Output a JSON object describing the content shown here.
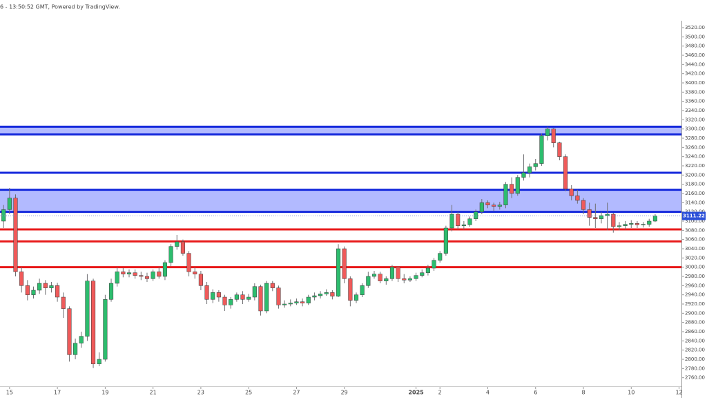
{
  "chart_data": {
    "type": "candlestick",
    "title": "6 - 13:50:52 GMT, Powered by TradingView.",
    "x": [
      14.75,
      15,
      15.25,
      15.5,
      15.75,
      16,
      16.25,
      16.5,
      16.75,
      17,
      17.25,
      17.5,
      17.75,
      18,
      18.25,
      18.5,
      18.75,
      19,
      19.25,
      19.5,
      19.75,
      20,
      20.25,
      20.5,
      20.75,
      21,
      21.25,
      21.5,
      21.75,
      22,
      22.25,
      22.5,
      22.75,
      23,
      23.25,
      23.5,
      23.75,
      24,
      24.25,
      24.5,
      24.75,
      25,
      25.25,
      25.5,
      25.75,
      26,
      26.25,
      26.5,
      26.75,
      27,
      27.25,
      27.5,
      27.75,
      28,
      28.25,
      28.5,
      28.75,
      29,
      29.25,
      29.5,
      29.75,
      30,
      30.25,
      30.5,
      30.75,
      31,
      31.25,
      31.5,
      31.75,
      32,
      32.25,
      32.5,
      32.75,
      33,
      33.25,
      33.5,
      33.75,
      34,
      34.25,
      34.5,
      34.75,
      35,
      35.25,
      35.5,
      35.75,
      36,
      36.25,
      36.5,
      36.75,
      37,
      37.25,
      37.5,
      37.75,
      38,
      38.25,
      38.5,
      38.75,
      39,
      39.25,
      39.5,
      39.75,
      40,
      40.25,
      40.5,
      40.75,
      41,
      41.25,
      41.5,
      41.75,
      42
    ],
    "open": [
      3100,
      3125,
      3150,
      2990,
      2960,
      2940,
      2950,
      2965,
      2955,
      2960,
      2935,
      2910,
      2810,
      2835,
      2850,
      2970,
      2790,
      2800,
      2930,
      2965,
      2990,
      2985,
      2988,
      2982,
      2980,
      2975,
      2990,
      2980,
      3010,
      3045,
      3055,
      3030,
      2990,
      2985,
      2960,
      2930,
      2945,
      2935,
      2918,
      2930,
      2940,
      2930,
      2935,
      2958,
      2905,
      2965,
      2955,
      2918,
      2920,
      2922,
      2925,
      2922,
      2935,
      2938,
      2942,
      2945,
      2937,
      3040,
      2975,
      2928,
      2940,
      2960,
      2980,
      2985,
      2970,
      2975,
      3000,
      2975,
      2972,
      2975,
      2982,
      2988,
      2998,
      3015,
      3030,
      3085,
      3115,
      3090,
      3092,
      3105,
      3120,
      3140,
      3135,
      3132,
      3135,
      3180,
      3160,
      3195,
      3205,
      3218,
      3225,
      3285,
      3300,
      3270,
      3240,
      3170,
      3155,
      3145,
      3125,
      3108,
      3105,
      3112,
      3115,
      3088,
      3090,
      3093,
      3095,
      3092,
      3093,
      3100
    ],
    "high": [
      3135,
      3172,
      3158,
      3000,
      2972,
      2958,
      2975,
      2972,
      2968,
      2966,
      2945,
      2915,
      2845,
      2860,
      2985,
      2975,
      2815,
      2940,
      2975,
      3000,
      2998,
      2995,
      2995,
      2990,
      2988,
      2995,
      3000,
      3015,
      3050,
      3070,
      3060,
      3035,
      3000,
      2992,
      2968,
      2952,
      2950,
      2940,
      2935,
      2945,
      2948,
      2942,
      2965,
      2962,
      2970,
      2970,
      2960,
      2928,
      2930,
      2932,
      2932,
      2940,
      2945,
      2948,
      2952,
      2950,
      3050,
      3045,
      2980,
      2945,
      2965,
      2990,
      2992,
      2990,
      2980,
      3005,
      3002,
      2985,
      2980,
      2988,
      2995,
      3005,
      3020,
      3035,
      3090,
      3135,
      3120,
      3100,
      3110,
      3125,
      3148,
      3145,
      3140,
      3142,
      3185,
      3195,
      3200,
      3245,
      3225,
      3235,
      3290,
      3305,
      3302,
      3272,
      3245,
      3178,
      3168,
      3150,
      3140,
      3138,
      3120,
      3140,
      3118,
      3098,
      3100,
      3102,
      3100,
      3098,
      3105,
      3115
    ],
    "low": [
      3085,
      3115,
      2980,
      2945,
      2928,
      2932,
      2942,
      2940,
      2945,
      2925,
      2890,
      2795,
      2800,
      2825,
      2840,
      2781,
      2785,
      2795,
      2925,
      2958,
      2978,
      2978,
      2975,
      2972,
      2968,
      2970,
      2975,
      2972,
      3002,
      3038,
      3025,
      2980,
      2975,
      2950,
      2920,
      2922,
      2925,
      2905,
      2910,
      2925,
      2920,
      2925,
      2928,
      2895,
      2900,
      2948,
      2910,
      2912,
      2915,
      2918,
      2915,
      2918,
      2928,
      2932,
      2938,
      2930,
      2935,
      2965,
      2915,
      2922,
      2935,
      2955,
      2975,
      2965,
      2962,
      2970,
      2968,
      2965,
      2968,
      2970,
      2978,
      2982,
      2992,
      3010,
      3025,
      3078,
      3082,
      3082,
      3088,
      3100,
      3115,
      3128,
      3122,
      3125,
      3128,
      3150,
      3155,
      3188,
      3195,
      3210,
      3220,
      3275,
      3260,
      3232,
      3165,
      3145,
      3138,
      3115,
      3090,
      3085,
      3095,
      3080,
      3075,
      3080,
      3082,
      3085,
      3085,
      3086,
      3088,
      3098
    ],
    "close": [
      3125,
      3150,
      2990,
      2960,
      2940,
      2950,
      2965,
      2955,
      2960,
      2935,
      2910,
      2810,
      2835,
      2850,
      2970,
      2790,
      2800,
      2930,
      2965,
      2990,
      2985,
      2988,
      2982,
      2980,
      2975,
      2990,
      2980,
      3010,
      3045,
      3055,
      3030,
      2990,
      2985,
      2960,
      2930,
      2945,
      2935,
      2918,
      2930,
      2940,
      2930,
      2935,
      2958,
      2905,
      2965,
      2955,
      2918,
      2920,
      2922,
      2925,
      2922,
      2935,
      2938,
      2942,
      2945,
      2937,
      3040,
      2975,
      2928,
      2940,
      2960,
      2980,
      2985,
      2970,
      2975,
      3000,
      2975,
      2972,
      2975,
      2982,
      2988,
      2998,
      3015,
      3030,
      3085,
      3115,
      3090,
      3092,
      3105,
      3120,
      3140,
      3135,
      3132,
      3135,
      3180,
      3160,
      3195,
      3205,
      3218,
      3225,
      3285,
      3300,
      3270,
      3240,
      3170,
      3155,
      3145,
      3125,
      3108,
      3105,
      3112,
      3115,
      3088,
      3090,
      3093,
      3095,
      3092,
      3093,
      3100,
      3111.22
    ],
    "up_color": "#2dbd6e",
    "down_color": "#ef5a5a",
    "wick_color": "#6f6f72",
    "zones": [
      {
        "from": 3288,
        "to": 3305,
        "color": "#aab2ff",
        "border": "#1428dc"
      },
      {
        "from": 3120,
        "to": 3168,
        "color": "#aab2ff",
        "border": "#1428dc"
      }
    ],
    "lines": [
      {
        "value": 3205,
        "color": "#1428dc"
      },
      {
        "value": 3082,
        "color": "#e8191a"
      },
      {
        "value": 3056,
        "color": "#e8191a"
      },
      {
        "value": 3000,
        "color": "#e8191a"
      }
    ],
    "price_label_color": "#2b4fd8",
    "xlim": [
      14.6,
      43.1
    ],
    "ylim": [
      2740,
      3535
    ],
    "xticks": [
      15,
      17,
      19,
      21,
      23,
      25,
      27,
      29,
      {
        "value": 32,
        "label": "2025"
      },
      {
        "value": 33,
        "label": "2"
      },
      {
        "value": 35,
        "label": "4"
      },
      {
        "value": 37,
        "label": "6"
      },
      {
        "value": 39,
        "label": "8"
      },
      {
        "value": 41,
        "label": "10"
      },
      {
        "value": 43,
        "label": "12"
      }
    ],
    "yticks": [
      {
        "value": 2760,
        "label": "2760.00"
      },
      {
        "value": 2780,
        "label": "2780.00"
      },
      {
        "value": 2800,
        "label": "2800.00"
      },
      {
        "value": 2820,
        "label": "2820.00"
      },
      {
        "value": 2840,
        "label": "2840.00"
      },
      {
        "value": 2860,
        "label": "2860.00"
      },
      {
        "value": 2880,
        "label": "2880.00"
      },
      {
        "value": 2900,
        "label": "2900.00"
      },
      {
        "value": 2920,
        "label": "2920.00"
      },
      {
        "value": 2940,
        "label": "2940.00"
      },
      {
        "value": 2960,
        "label": "2960.00"
      },
      {
        "value": 2980,
        "label": "2980.00"
      },
      {
        "value": 3000,
        "label": "3000.00"
      },
      {
        "value": 3020,
        "label": "3020.00"
      },
      {
        "value": 3040,
        "label": "3040.00"
      },
      {
        "value": 3060,
        "label": "3060.00"
      },
      {
        "value": 3080,
        "label": "3080.00"
      },
      {
        "value": 3100,
        "label": "3100.00"
      },
      {
        "value": 3120,
        "label": "3120.00"
      },
      {
        "value": 3140,
        "label": "3140.00"
      },
      {
        "value": 3160,
        "label": "3160.00"
      },
      {
        "value": 3180,
        "label": "3180.00"
      },
      {
        "value": 3200,
        "label": "3200.00"
      },
      {
        "value": 3220,
        "label": "3220.00"
      },
      {
        "value": 3240,
        "label": "3240.00"
      },
      {
        "value": 3260,
        "label": "3260.00"
      },
      {
        "value": 3280,
        "label": "3280.00"
      },
      {
        "value": 3300,
        "label": "3300.00"
      },
      {
        "value": 3320,
        "label": "3320.00"
      },
      {
        "value": 3340,
        "label": "3340.00"
      },
      {
        "value": 3360,
        "label": "3360.00"
      },
      {
        "value": 3380,
        "label": "3380.00"
      },
      {
        "value": 3400,
        "label": "3400.00"
      },
      {
        "value": 3420,
        "label": "3420.00"
      },
      {
        "value": 3440,
        "label": "3440.00"
      },
      {
        "value": 3460,
        "label": "3460.00"
      },
      {
        "value": 3480,
        "label": "3480.00"
      },
      {
        "value": 3500,
        "label": "3500.00"
      },
      {
        "value": 3520,
        "label": "3520.00"
      }
    ],
    "grid": false
  }
}
